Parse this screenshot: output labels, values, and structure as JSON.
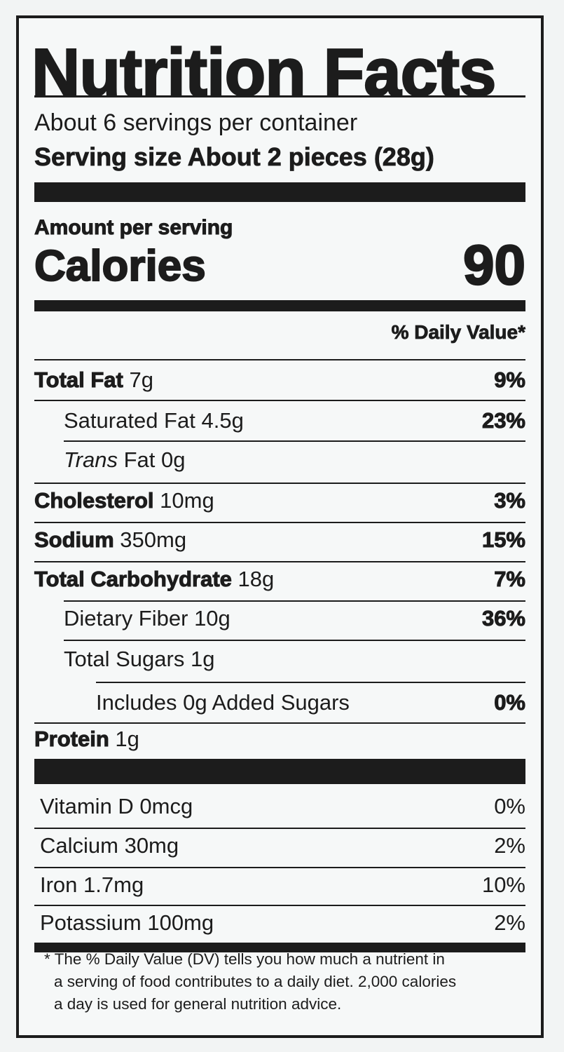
{
  "title": "Nutrition Facts",
  "servings_per_container": "About 6 servings per container",
  "serving_size": "Serving size About 2 pieces (28g)",
  "amount_per_serving": "Amount per serving",
  "calories_label": "Calories",
  "calories_value": "90",
  "daily_value_header": "% Daily Value*",
  "nutrients": [
    {
      "name": "Total Fat",
      "amount": "7g",
      "dv": "9%"
    },
    {
      "name": "Saturated Fat",
      "amount": "4.5g",
      "dv": "23%"
    },
    {
      "name": "Trans",
      "amount": "Fat 0g",
      "dv": ""
    },
    {
      "name": "Cholesterol",
      "amount": "10mg",
      "dv": "3%"
    },
    {
      "name": "Sodium",
      "amount": "350mg",
      "dv": "15%"
    },
    {
      "name": "Total Carbohydrate",
      "amount": "18g",
      "dv": "7%"
    },
    {
      "name": "Dietary Fiber",
      "amount": "10g",
      "dv": "36%"
    },
    {
      "name": "Total Sugars",
      "amount": "1g",
      "dv": ""
    },
    {
      "name": "Includes 0g Added Sugars",
      "amount": "",
      "dv": "0%"
    },
    {
      "name": "Protein",
      "amount": "1g",
      "dv": ""
    }
  ],
  "vitamins": [
    {
      "label": "Vitamin D 0mcg",
      "dv": "0%"
    },
    {
      "label": "Calcium 30mg",
      "dv": "2%"
    },
    {
      "label": "Iron 1.7mg",
      "dv": "10%"
    },
    {
      "label": "Potassium 100mg",
      "dv": "2%"
    }
  ],
  "footnote": {
    "line1": "* The % Daily Value (DV) tells you how much a nutrient in",
    "line2": "a serving of food contributes to a daily diet. 2,000 calories",
    "line3": "a day is used for general nutrition advice."
  }
}
